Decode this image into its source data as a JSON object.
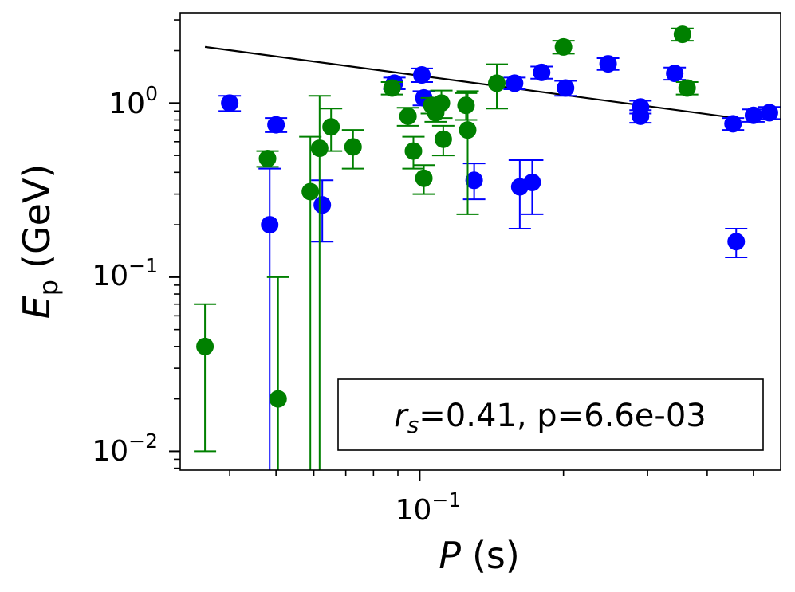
{
  "chart_data": {
    "type": "scatter",
    "xscale": "log",
    "yscale": "log",
    "xlim": [
      0.0315,
      0.57
    ],
    "ylim": [
      0.0078,
      3.3
    ],
    "xlabel": "P",
    "xlabel_unit": "(s)",
    "ylabel": "E",
    "ylabel_sub": "p",
    "ylabel_unit": "(GeV)",
    "xticks": [
      {
        "value": 0.1,
        "base": "10",
        "exp": "−1"
      }
    ],
    "yticks": [
      {
        "value": 1,
        "base": "10",
        "exp": "0"
      },
      {
        "value": 0.1,
        "base": "10",
        "exp": "−1"
      },
      {
        "value": 0.01,
        "base": "10",
        "exp": "−2"
      }
    ],
    "annotation": {
      "r_symbol": "r",
      "r_sub": "s",
      "text": "=0.41, p=6.6e-03",
      "position": "bottom-right"
    },
    "fit_line": {
      "color": "#000000",
      "points": [
        [
          0.0355,
          2.1
        ],
        [
          0.46,
          0.82
        ]
      ]
    },
    "series": [
      {
        "name": "blue",
        "color": "#0000ff",
        "points": [
          {
            "x": 0.04,
            "y": 1.0,
            "ylo": 0.9,
            "yhi": 1.1
          },
          {
            "x": 0.0485,
            "y": 0.2,
            "ylo": 0.0001,
            "yhi": 0.42
          },
          {
            "x": 0.05,
            "y": 0.75,
            "ylo": 0.68,
            "yhi": 0.82
          },
          {
            "x": 0.0625,
            "y": 0.26,
            "ylo": 0.16,
            "yhi": 0.36
          },
          {
            "x": 0.0885,
            "y": 1.3,
            "ylo": 1.2,
            "yhi": 1.4
          },
          {
            "x": 0.101,
            "y": 1.45,
            "ylo": 1.32,
            "yhi": 1.58
          },
          {
            "x": 0.102,
            "y": 1.07,
            "ylo": 0.97,
            "yhi": 1.17
          },
          {
            "x": 0.13,
            "y": 0.36,
            "ylo": 0.28,
            "yhi": 0.45
          },
          {
            "x": 0.158,
            "y": 1.3,
            "ylo": 1.2,
            "yhi": 1.4
          },
          {
            "x": 0.162,
            "y": 0.33,
            "ylo": 0.19,
            "yhi": 0.47
          },
          {
            "x": 0.172,
            "y": 0.35,
            "ylo": 0.23,
            "yhi": 0.47
          },
          {
            "x": 0.18,
            "y": 1.5,
            "ylo": 1.38,
            "yhi": 1.62
          },
          {
            "x": 0.202,
            "y": 1.22,
            "ylo": 1.1,
            "yhi": 1.34
          },
          {
            "x": 0.248,
            "y": 1.68,
            "ylo": 1.55,
            "yhi": 1.81
          },
          {
            "x": 0.29,
            "y": 0.95,
            "ylo": 0.87,
            "yhi": 1.03
          },
          {
            "x": 0.29,
            "y": 0.84,
            "ylo": 0.77,
            "yhi": 0.91
          },
          {
            "x": 0.342,
            "y": 1.48,
            "ylo": 1.36,
            "yhi": 1.6
          },
          {
            "x": 0.453,
            "y": 0.76,
            "ylo": 0.7,
            "yhi": 0.82
          },
          {
            "x": 0.46,
            "y": 0.16,
            "ylo": 0.13,
            "yhi": 0.19
          },
          {
            "x": 0.5,
            "y": 0.85,
            "ylo": 0.78,
            "yhi": 0.92
          },
          {
            "x": 0.54,
            "y": 0.88,
            "ylo": 0.81,
            "yhi": 0.95
          }
        ]
      },
      {
        "name": "green",
        "color": "#008000",
        "points": [
          {
            "x": 0.0355,
            "y": 0.04,
            "ylo": 0.01,
            "yhi": 0.07
          },
          {
            "x": 0.048,
            "y": 0.48,
            "ylo": 0.43,
            "yhi": 0.53
          },
          {
            "x": 0.0505,
            "y": 0.02,
            "ylo": 0.0001,
            "yhi": 0.1
          },
          {
            "x": 0.059,
            "y": 0.31,
            "ylo": 0.0001,
            "yhi": 0.64
          },
          {
            "x": 0.0617,
            "y": 0.55,
            "ylo": 0.0001,
            "yhi": 1.1
          },
          {
            "x": 0.0652,
            "y": 0.73,
            "ylo": 0.53,
            "yhi": 0.93
          },
          {
            "x": 0.0725,
            "y": 0.56,
            "ylo": 0.42,
            "yhi": 0.7
          },
          {
            "x": 0.0875,
            "y": 1.22,
            "ylo": 1.12,
            "yhi": 1.32
          },
          {
            "x": 0.0945,
            "y": 0.84,
            "ylo": 0.74,
            "yhi": 0.94
          },
          {
            "x": 0.097,
            "y": 0.53,
            "ylo": 0.42,
            "yhi": 0.64
          },
          {
            "x": 0.102,
            "y": 0.37,
            "ylo": 0.3,
            "yhi": 0.44
          },
          {
            "x": 0.106,
            "y": 0.97,
            "ylo": 0.87,
            "yhi": 1.07
          },
          {
            "x": 0.108,
            "y": 0.88,
            "ylo": 0.78,
            "yhi": 0.98
          },
          {
            "x": 0.111,
            "y": 1.0,
            "ylo": 0.82,
            "yhi": 1.18
          },
          {
            "x": 0.112,
            "y": 0.62,
            "ylo": 0.5,
            "yhi": 0.74
          },
          {
            "x": 0.125,
            "y": 0.97,
            "ylo": 0.8,
            "yhi": 1.14
          },
          {
            "x": 0.126,
            "y": 0.7,
            "ylo": 0.23,
            "yhi": 1.17
          },
          {
            "x": 0.145,
            "y": 1.3,
            "ylo": 0.93,
            "yhi": 1.67
          },
          {
            "x": 0.2,
            "y": 2.1,
            "ylo": 1.92,
            "yhi": 2.28
          },
          {
            "x": 0.355,
            "y": 2.48,
            "ylo": 2.28,
            "yhi": 2.68
          },
          {
            "x": 0.363,
            "y": 1.22,
            "ylo": 1.12,
            "yhi": 1.32
          }
        ]
      }
    ]
  }
}
